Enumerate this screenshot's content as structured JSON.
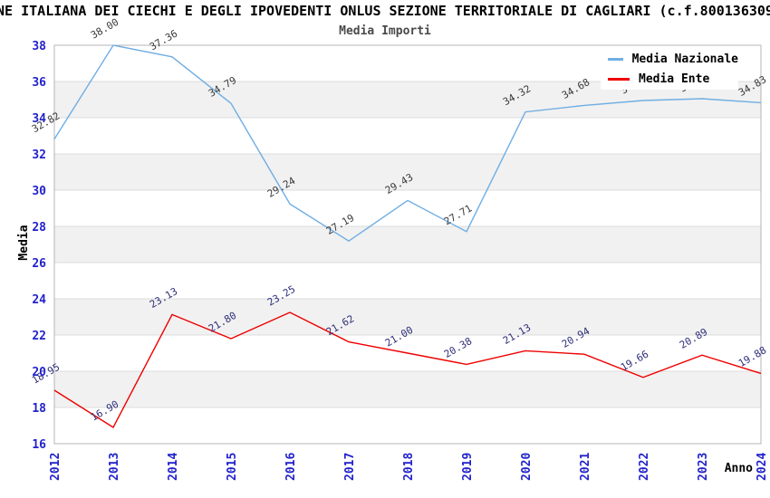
{
  "header": {
    "title_visible": "ONE ITALIANA DEI CIECHI E DEGLI IPOVEDENTI ONLUS SEZIONE TERRITORIALE DI CAGLIARI (c.f.800136309",
    "subtitle": "Media Importi"
  },
  "legend": {
    "position": "top-right",
    "items": [
      {
        "label": "Media Nazionale",
        "color": "#6FAEE3"
      },
      {
        "label": "Media Ente",
        "color": "#EE0000"
      }
    ]
  },
  "axes": {
    "y_title": "Media",
    "x_title": "Anno",
    "y_ticks": [
      16,
      18,
      20,
      22,
      24,
      26,
      28,
      30,
      32,
      34,
      36,
      38
    ],
    "x_ticks": [
      "2012",
      "2013",
      "2014",
      "2015",
      "2016",
      "2017",
      "2018",
      "2019",
      "2020",
      "2021",
      "2022",
      "2023",
      "2024"
    ],
    "tick_color": "#2222CC",
    "grid_color": "#DCDCDC",
    "band_color": "#F1F1F1",
    "border_color": "#B4B4B4"
  },
  "chart_data": {
    "type": "line",
    "title": "Media Importi",
    "xlabel": "Anno",
    "ylabel": "Media",
    "ylim": [
      16,
      38
    ],
    "ytick_step": 2,
    "grid": true,
    "legend_position": "top-right",
    "categories": [
      "2012",
      "2013",
      "2014",
      "2015",
      "2016",
      "2017",
      "2018",
      "2019",
      "2020",
      "2021",
      "2022",
      "2023",
      "2024"
    ],
    "series": [
      {
        "name": "Media Nazionale",
        "color": "#6FAEE3",
        "label_color": "#3A3A3A",
        "values": [
          32.82,
          38.0,
          37.36,
          34.79,
          29.24,
          27.19,
          29.43,
          27.71,
          34.32,
          34.68,
          34.95,
          35.05,
          34.83
        ],
        "labels": [
          "32.82",
          "38.00",
          "37.36",
          "34.79",
          "29.24",
          "27.19",
          "29.43",
          "27.71",
          "34.32",
          "34.68",
          "34.95",
          "35.05",
          "34.83"
        ]
      },
      {
        "name": "Media Ente",
        "color": "#EE0000",
        "label_color": "#2E2E7A",
        "values": [
          18.95,
          16.9,
          23.13,
          21.8,
          23.25,
          21.62,
          21.0,
          20.38,
          21.13,
          20.94,
          19.66,
          20.89,
          19.88
        ],
        "labels": [
          "18.95",
          "16.90",
          "23.13",
          "21.80",
          "23.25",
          "21.62",
          "21.00",
          "20.38",
          "21.13",
          "20.94",
          "19.66",
          "20.89",
          "19.88"
        ]
      }
    ]
  }
}
